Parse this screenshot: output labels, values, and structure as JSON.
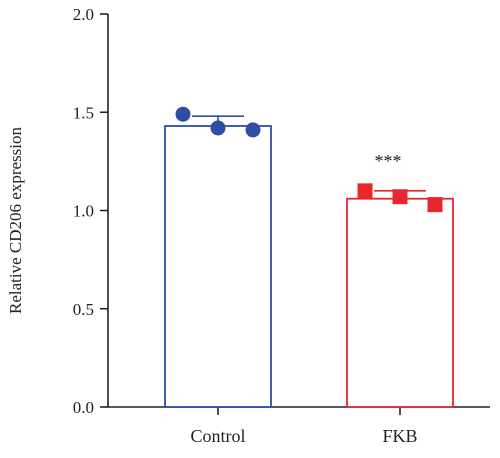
{
  "chart_data": {
    "type": "bar",
    "title": "",
    "xlabel": "",
    "ylabel": "Relative CD206 expression",
    "ylim": [
      0,
      2.0
    ],
    "yticks": [
      0.0,
      0.5,
      1.0,
      1.5,
      2.0
    ],
    "ytick_labels": [
      "0.0",
      "0.5",
      "1.0",
      "1.5",
      "2.0"
    ],
    "grid": false,
    "categories": [
      "Control",
      "FKB"
    ],
    "values": [
      1.43,
      1.06
    ],
    "errors": [
      0.05,
      0.04
    ],
    "points": [
      [
        1.49,
        1.42,
        1.41
      ],
      [
        1.1,
        1.07,
        1.03
      ]
    ],
    "marker_shapes": [
      "circle",
      "square"
    ],
    "colors": [
      "#2e4ea3",
      "#e8262b"
    ],
    "annotations": [
      "",
      "***"
    ]
  }
}
